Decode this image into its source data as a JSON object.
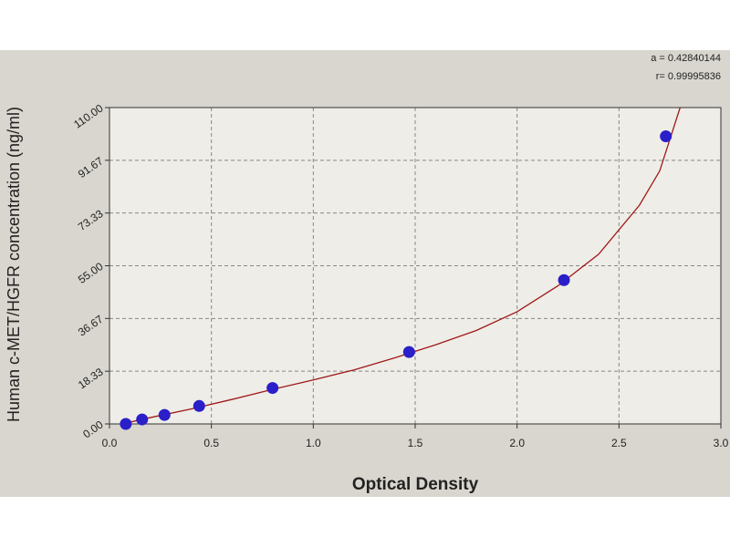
{
  "chart_data": {
    "type": "scatter",
    "xlabel": "Optical Density",
    "ylabel": "Human c-MET/HGFR concentration (ng/ml)",
    "annotations": [
      "a = 0.42840144",
      "r= 0.99995836"
    ],
    "xlim": [
      0,
      3
    ],
    "ylim": [
      0,
      110
    ],
    "xticks": [
      {
        "value": 0,
        "label": "0.0"
      },
      0.5,
      {
        "value": 1,
        "label": "1.0"
      },
      1.5,
      {
        "value": 2,
        "label": "2.0"
      },
      2.5,
      {
        "value": 3,
        "label": "3.0"
      }
    ],
    "yticks": [
      {
        "value": 0,
        "label": "0.00"
      },
      18.33,
      36.67,
      {
        "value": 55,
        "label": "55.00"
      },
      73.33,
      91.67,
      {
        "value": 110,
        "label": "110.00"
      }
    ],
    "grid": true,
    "series": [
      {
        "type": "scatter",
        "color": "#2a1fc8",
        "x": [
          0.08,
          0.16,
          0.27,
          0.44,
          0.8,
          1.47,
          2.23,
          2.73
        ],
        "values": [
          0,
          1.56,
          3.13,
          6.25,
          12.5,
          25,
          50,
          100
        ]
      },
      {
        "type": "line",
        "color": "#a01818",
        "x": [
          0.08,
          0.2,
          0.4,
          0.6,
          0.8,
          1.0,
          1.2,
          1.4,
          1.6,
          1.8,
          2.0,
          2.2,
          2.4,
          2.6,
          2.7,
          2.8
        ],
        "values": [
          0.3,
          2.2,
          5.2,
          8.5,
          12,
          15.3,
          18.8,
          23,
          27.5,
          32.5,
          39,
          48,
          59,
          76,
          88,
          110
        ]
      }
    ]
  }
}
